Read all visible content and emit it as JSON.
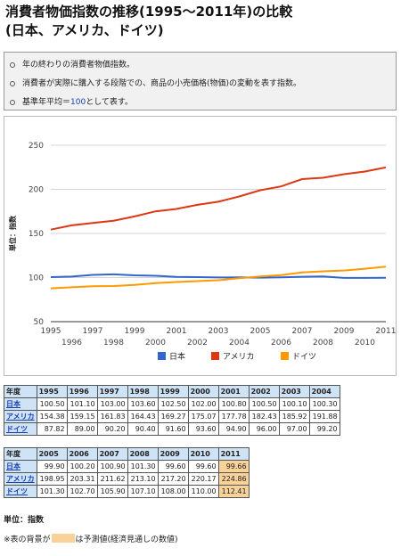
{
  "title": {
    "line1": "消費者物価指数の推移(1995～2011年)の比較",
    "line2": "(日本、アメリカ、ドイツ)"
  },
  "notes": [
    "年の終わりの消費者物価指数。",
    "消費者が実際に購入する段階での、商品の小売価格(物価)の変動を表す指数。"
  ],
  "note3": {
    "prefix": "基準年平均＝",
    "number": "100",
    "suffix": "として表す。"
  },
  "chart_data": {
    "type": "line",
    "ylabel": "単位：指数",
    "ylim": [
      50,
      250
    ],
    "yticks": [
      50,
      100,
      150,
      200,
      250
    ],
    "x": [
      1995,
      1996,
      1997,
      1998,
      1999,
      2000,
      2001,
      2002,
      2003,
      2004,
      2005,
      2006,
      2007,
      2008,
      2009,
      2010,
      2011
    ],
    "x_ticks_top": [
      "1995",
      "1997",
      "1999",
      "2001",
      "2003",
      "2005",
      "2007",
      "2009",
      "2011"
    ],
    "x_ticks_bottom": [
      "1996",
      "1998",
      "2000",
      "2002",
      "2004",
      "2006",
      "2008",
      "2010"
    ],
    "series": [
      {
        "name": "日本",
        "color": "#3366cc",
        "values": [
          100.5,
          101.1,
          103.0,
          103.6,
          102.5,
          102.0,
          100.8,
          100.5,
          100.1,
          100.3,
          99.9,
          100.2,
          100.9,
          101.3,
          99.6,
          99.6,
          99.66
        ]
      },
      {
        "name": "アメリカ",
        "color": "#dc3912",
        "values": [
          154.38,
          159.15,
          161.83,
          164.43,
          169.27,
          175.07,
          177.78,
          182.43,
          185.92,
          191.88,
          198.95,
          203.31,
          211.62,
          213.1,
          217.2,
          220.17,
          224.86
        ]
      },
      {
        "name": "ドイツ",
        "color": "#ff9900",
        "values": [
          87.82,
          89.0,
          90.2,
          90.4,
          91.6,
          93.6,
          94.9,
          96.0,
          97.0,
          99.2,
          101.3,
          102.7,
          105.9,
          107.1,
          108.0,
          110.0,
          112.41
        ]
      }
    ],
    "legend_position": "bottom",
    "grid": true
  },
  "table1": {
    "corner": "年度",
    "years": [
      "1995",
      "1996",
      "1997",
      "1998",
      "1999",
      "2000",
      "2001",
      "2002",
      "2003",
      "2004"
    ],
    "rows": [
      {
        "label": "日本",
        "values": [
          "100.50",
          "101.10",
          "103.00",
          "103.60",
          "102.50",
          "102.00",
          "100.80",
          "100.50",
          "100.10",
          "100.30"
        ]
      },
      {
        "label": "アメリカ",
        "values": [
          "154.38",
          "159.15",
          "161.83",
          "164.43",
          "169.27",
          "175.07",
          "177.78",
          "182.43",
          "185.92",
          "191.88"
        ]
      },
      {
        "label": "ドイツ",
        "values": [
          "87.82",
          "89.00",
          "90.20",
          "90.40",
          "91.60",
          "93.60",
          "94.90",
          "96.00",
          "97.00",
          "99.20"
        ]
      }
    ]
  },
  "table2": {
    "corner": "年度",
    "years": [
      "2005",
      "2006",
      "2007",
      "2008",
      "2009",
      "2010",
      "2011"
    ],
    "forecast_col": 6,
    "rows": [
      {
        "label": "日本",
        "values": [
          "99.90",
          "100.20",
          "100.90",
          "101.30",
          "99.60",
          "99.60",
          "99.66"
        ]
      },
      {
        "label": "アメリカ",
        "values": [
          "198.95",
          "203.31",
          "211.62",
          "213.10",
          "217.20",
          "220.17",
          "224.86"
        ]
      },
      {
        "label": "ドイツ",
        "values": [
          "101.30",
          "102.70",
          "105.90",
          "107.10",
          "108.00",
          "110.00",
          "112.41"
        ]
      }
    ]
  },
  "unit_text": "単位：指数",
  "footnote": {
    "prefix": "※表の背景が",
    "suffix": "は予測値(経済見通しの数値)"
  }
}
